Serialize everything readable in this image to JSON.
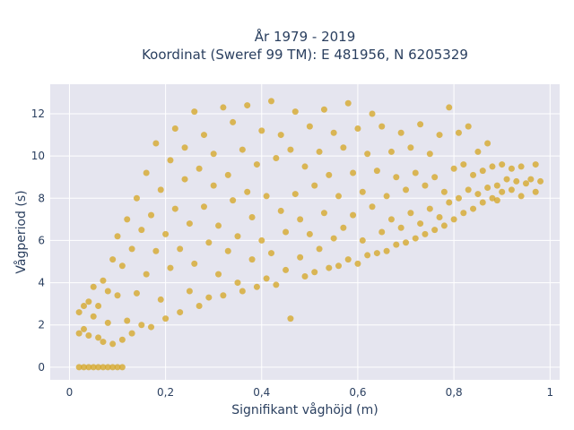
{
  "chart_data": {
    "type": "scatter",
    "title": "År 1979 - 2019",
    "subtitle": "Koordinat (Sweref 99 TM): E 481956, N 6205329",
    "xlabel": "Signifikant våghöjd (m)",
    "ylabel": "Vågperiod (s)",
    "xlim": [
      -0.04,
      1.02
    ],
    "ylim": [
      -0.6,
      13.4
    ],
    "xticks": [
      0,
      0.2,
      0.4,
      0.6,
      0.8,
      1
    ],
    "xtick_labels": [
      "0",
      "0,2",
      "0,4",
      "0,6",
      "0,8",
      "1"
    ],
    "yticks": [
      0,
      2,
      4,
      6,
      8,
      10,
      12
    ],
    "ytick_labels": [
      "0",
      "2",
      "4",
      "6",
      "8",
      "10",
      "12"
    ],
    "grid": true,
    "marker_color": "#D4A420",
    "plot_background": "#E5E5EF",
    "series": [
      {
        "points": [
          [
            0.02,
            2.6
          ],
          [
            0.02,
            1.6
          ],
          [
            0.03,
            2.9
          ],
          [
            0.03,
            1.8
          ],
          [
            0.04,
            3.1
          ],
          [
            0.04,
            1.5
          ],
          [
            0.05,
            2.4
          ],
          [
            0.05,
            3.8
          ],
          [
            0.06,
            1.4
          ],
          [
            0.06,
            2.9
          ],
          [
            0.07,
            4.1
          ],
          [
            0.07,
            1.2
          ],
          [
            0.08,
            3.6
          ],
          [
            0.08,
            2.1
          ],
          [
            0.09,
            5.1
          ],
          [
            0.09,
            1.1
          ],
          [
            0.1,
            3.4
          ],
          [
            0.1,
            6.2
          ],
          [
            0.11,
            1.3
          ],
          [
            0.11,
            4.8
          ],
          [
            0.12,
            2.2
          ],
          [
            0.12,
            7.0
          ],
          [
            0.13,
            5.6
          ],
          [
            0.13,
            1.6
          ],
          [
            0.14,
            3.5
          ],
          [
            0.14,
            8.0
          ],
          [
            0.15,
            6.5
          ],
          [
            0.15,
            2.0
          ],
          [
            0.16,
            4.4
          ],
          [
            0.16,
            9.2
          ],
          [
            0.17,
            7.2
          ],
          [
            0.17,
            1.9
          ],
          [
            0.18,
            5.5
          ],
          [
            0.18,
            10.6
          ],
          [
            0.19,
            3.2
          ],
          [
            0.19,
            8.4
          ],
          [
            0.2,
            6.3
          ],
          [
            0.2,
            2.3
          ],
          [
            0.21,
            9.8
          ],
          [
            0.21,
            4.7
          ],
          [
            0.22,
            11.3
          ],
          [
            0.22,
            7.5
          ],
          [
            0.23,
            2.6
          ],
          [
            0.23,
            5.6
          ],
          [
            0.24,
            8.9
          ],
          [
            0.24,
            10.4
          ],
          [
            0.25,
            3.6
          ],
          [
            0.25,
            6.8
          ],
          [
            0.26,
            12.1
          ],
          [
            0.26,
            4.9
          ],
          [
            0.27,
            9.4
          ],
          [
            0.27,
            2.9
          ],
          [
            0.28,
            7.6
          ],
          [
            0.28,
            11.0
          ],
          [
            0.29,
            5.9
          ],
          [
            0.29,
            3.3
          ],
          [
            0.3,
            8.6
          ],
          [
            0.3,
            10.1
          ],
          [
            0.31,
            4.4
          ],
          [
            0.31,
            6.7
          ],
          [
            0.32,
            12.3
          ],
          [
            0.32,
            3.4
          ],
          [
            0.33,
            9.1
          ],
          [
            0.33,
            5.5
          ],
          [
            0.34,
            7.9
          ],
          [
            0.34,
            11.6
          ],
          [
            0.35,
            4.0
          ],
          [
            0.35,
            6.2
          ],
          [
            0.36,
            10.3
          ],
          [
            0.36,
            3.6
          ],
          [
            0.37,
            8.3
          ],
          [
            0.37,
            12.4
          ],
          [
            0.38,
            5.1
          ],
          [
            0.38,
            7.1
          ],
          [
            0.39,
            3.8
          ],
          [
            0.39,
            9.6
          ],
          [
            0.4,
            11.2
          ],
          [
            0.4,
            6.0
          ],
          [
            0.41,
            4.2
          ],
          [
            0.41,
            8.1
          ],
          [
            0.42,
            12.6
          ],
          [
            0.42,
            5.4
          ],
          [
            0.43,
            3.9
          ],
          [
            0.43,
            9.9
          ],
          [
            0.44,
            7.4
          ],
          [
            0.44,
            11.0
          ],
          [
            0.45,
            4.6
          ],
          [
            0.45,
            6.4
          ],
          [
            0.46,
            10.3
          ],
          [
            0.46,
            2.3
          ],
          [
            0.47,
            8.2
          ],
          [
            0.47,
            12.1
          ],
          [
            0.48,
            5.2
          ],
          [
            0.48,
            7.0
          ],
          [
            0.49,
            4.3
          ],
          [
            0.49,
            9.5
          ],
          [
            0.5,
            11.4
          ],
          [
            0.5,
            6.3
          ],
          [
            0.51,
            4.5
          ],
          [
            0.51,
            8.6
          ],
          [
            0.52,
            10.2
          ],
          [
            0.52,
            5.6
          ],
          [
            0.53,
            12.2
          ],
          [
            0.53,
            7.3
          ],
          [
            0.54,
            4.7
          ],
          [
            0.54,
            9.1
          ],
          [
            0.55,
            6.1
          ],
          [
            0.55,
            11.1
          ],
          [
            0.56,
            4.8
          ],
          [
            0.56,
            8.1
          ],
          [
            0.57,
            10.4
          ],
          [
            0.57,
            6.6
          ],
          [
            0.58,
            12.5
          ],
          [
            0.58,
            5.1
          ],
          [
            0.59,
            9.2
          ],
          [
            0.59,
            7.2
          ],
          [
            0.6,
            4.9
          ],
          [
            0.6,
            11.3
          ],
          [
            0.61,
            8.3
          ],
          [
            0.61,
            6.0
          ],
          [
            0.62,
            10.1
          ],
          [
            0.62,
            5.3
          ],
          [
            0.63,
            12.0
          ],
          [
            0.63,
            7.6
          ],
          [
            0.64,
            5.4
          ],
          [
            0.64,
            9.3
          ],
          [
            0.65,
            6.4
          ],
          [
            0.65,
            11.4
          ],
          [
            0.66,
            8.1
          ],
          [
            0.66,
            5.5
          ],
          [
            0.67,
            10.2
          ],
          [
            0.67,
            7.0
          ],
          [
            0.68,
            5.8
          ],
          [
            0.68,
            9.0
          ],
          [
            0.69,
            11.1
          ],
          [
            0.69,
            6.6
          ],
          [
            0.7,
            8.4
          ],
          [
            0.7,
            5.9
          ],
          [
            0.71,
            10.4
          ],
          [
            0.71,
            7.3
          ],
          [
            0.72,
            6.1
          ],
          [
            0.72,
            9.2
          ],
          [
            0.73,
            11.5
          ],
          [
            0.73,
            6.8
          ],
          [
            0.74,
            8.6
          ],
          [
            0.74,
            6.3
          ],
          [
            0.75,
            10.1
          ],
          [
            0.75,
            7.5
          ],
          [
            0.76,
            6.5
          ],
          [
            0.76,
            9.0
          ],
          [
            0.77,
            11.0
          ],
          [
            0.77,
            7.1
          ],
          [
            0.78,
            8.3
          ],
          [
            0.78,
            6.7
          ],
          [
            0.79,
            12.3
          ],
          [
            0.79,
            7.8
          ],
          [
            0.8,
            9.4
          ],
          [
            0.8,
            7.0
          ],
          [
            0.81,
            11.1
          ],
          [
            0.81,
            8.0
          ],
          [
            0.82,
            7.3
          ],
          [
            0.82,
            9.6
          ],
          [
            0.83,
            8.4
          ],
          [
            0.83,
            11.4
          ],
          [
            0.84,
            7.5
          ],
          [
            0.84,
            9.1
          ],
          [
            0.85,
            8.2
          ],
          [
            0.85,
            10.2
          ],
          [
            0.86,
            7.8
          ],
          [
            0.86,
            9.3
          ],
          [
            0.87,
            8.5
          ],
          [
            0.87,
            10.6
          ],
          [
            0.88,
            8.0
          ],
          [
            0.88,
            9.5
          ],
          [
            0.89,
            8.6
          ],
          [
            0.89,
            7.9
          ],
          [
            0.9,
            9.6
          ],
          [
            0.9,
            8.3
          ],
          [
            0.91,
            8.9
          ],
          [
            0.92,
            9.4
          ],
          [
            0.92,
            8.4
          ],
          [
            0.93,
            8.8
          ],
          [
            0.94,
            9.5
          ],
          [
            0.94,
            8.1
          ],
          [
            0.95,
            8.7
          ],
          [
            0.96,
            8.9
          ],
          [
            0.97,
            9.6
          ],
          [
            0.97,
            8.3
          ],
          [
            0.98,
            8.8
          ],
          [
            0.02,
            0.0
          ],
          [
            0.03,
            0.0
          ],
          [
            0.04,
            0.0
          ],
          [
            0.05,
            0.0
          ],
          [
            0.06,
            0.0
          ],
          [
            0.07,
            0.0
          ],
          [
            0.08,
            0.0
          ],
          [
            0.09,
            0.0
          ],
          [
            0.1,
            0.0
          ],
          [
            0.11,
            0.0
          ]
        ]
      }
    ]
  }
}
